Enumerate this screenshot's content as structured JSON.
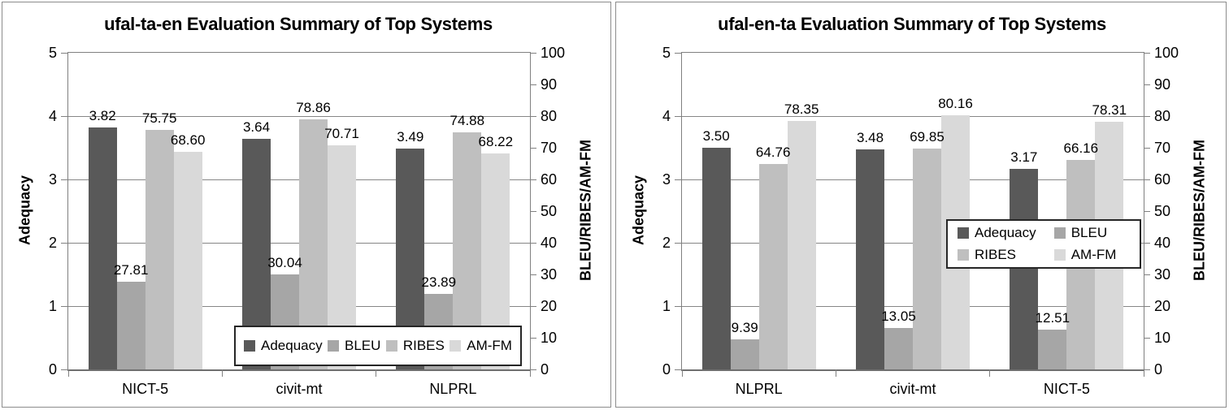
{
  "page": {
    "background": "#ffffff",
    "panel_border_color": "#8c8c8c",
    "gridline_color": "#868686"
  },
  "series_colors": {
    "Adequacy": "#595959",
    "BLEU": "#a6a6a6",
    "RIBES": "#bfbfbf",
    "AM-FM": "#d9d9d9"
  },
  "chart_data": [
    {
      "type": "bar",
      "title": "ufal-ta-en Evaluation Summary of Top Systems",
      "categories": [
        "NICT-5",
        "civit-mt",
        "NLPRL"
      ],
      "left_axis": {
        "title": "Adequacy",
        "min": 0,
        "max": 5,
        "ticks": [
          5,
          4,
          3,
          2,
          1,
          0
        ]
      },
      "right_axis": {
        "title": "BLEU/RIBES/AM-FM",
        "min": 0,
        "max": 100,
        "ticks": [
          100,
          90,
          80,
          70,
          60,
          50,
          40,
          30,
          20,
          10,
          0
        ]
      },
      "grid": true,
      "series": [
        {
          "name": "Adequacy",
          "axis": "left",
          "values": [
            3.82,
            3.64,
            3.49
          ],
          "labels": [
            "3.82",
            "3.64",
            "3.49"
          ]
        },
        {
          "name": "BLEU",
          "axis": "right",
          "values": [
            27.81,
            30.04,
            23.89
          ],
          "labels": [
            "27.81",
            "30.04",
            "23.89"
          ]
        },
        {
          "name": "RIBES",
          "axis": "right",
          "values": [
            75.75,
            78.86,
            74.88
          ],
          "labels": [
            "75.75",
            "78.86",
            "74.88"
          ]
        },
        {
          "name": "AM-FM",
          "axis": "right",
          "values": [
            68.6,
            70.71,
            68.22
          ],
          "labels": [
            "68.60",
            "70.71",
            "68.22"
          ]
        }
      ],
      "legend": {
        "items": [
          "Adequacy",
          "BLEU",
          "RIBES",
          "AM-FM"
        ],
        "layout": "row",
        "position": "bottom-right-overlay"
      }
    },
    {
      "type": "bar",
      "title": "ufal-en-ta Evaluation Summary of Top Systems",
      "categories": [
        "NLPRL",
        "civit-mt",
        "NICT-5"
      ],
      "left_axis": {
        "title": "Adequacy",
        "min": 0,
        "max": 5,
        "ticks": [
          5,
          4,
          3,
          2,
          1,
          0
        ]
      },
      "right_axis": {
        "title": "BLEU/RIBES/AM-FM",
        "min": 0,
        "max": 100,
        "ticks": [
          100,
          90,
          80,
          70,
          60,
          50,
          40,
          30,
          20,
          10,
          0
        ]
      },
      "grid": true,
      "series": [
        {
          "name": "Adequacy",
          "axis": "left",
          "values": [
            3.5,
            3.48,
            3.17
          ],
          "labels": [
            "3.50",
            "3.48",
            "3.17"
          ]
        },
        {
          "name": "BLEU",
          "axis": "right",
          "values": [
            9.39,
            13.05,
            12.51
          ],
          "labels": [
            "9.39",
            "13.05",
            "12.51"
          ]
        },
        {
          "name": "RIBES",
          "axis": "right",
          "values": [
            64.76,
            69.85,
            66.16
          ],
          "labels": [
            "64.76",
            "69.85",
            "66.16"
          ]
        },
        {
          "name": "AM-FM",
          "axis": "right",
          "values": [
            78.35,
            80.16,
            78.31
          ],
          "labels": [
            "78.35",
            "80.16",
            "78.31"
          ]
        }
      ],
      "legend": {
        "items": [
          "Adequacy",
          "BLEU",
          "RIBES",
          "AM-FM"
        ],
        "layout": "grid-2x2",
        "position": "middle-right-overlay"
      }
    }
  ]
}
